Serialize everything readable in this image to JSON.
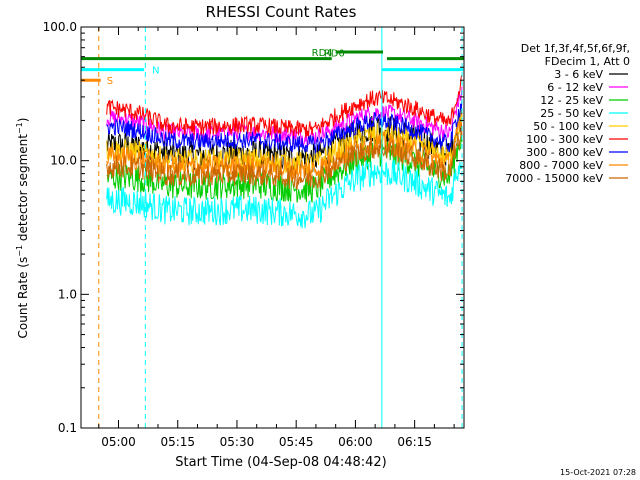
{
  "chart_data": {
    "type": "line",
    "title": "RHESSI Count Rates",
    "xlabel": "Start Time (04-Sep-08 04:48:42)",
    "ylabel": "Count Rate (s⁻¹ detector segment⁻¹)",
    "ylabel_parts": {
      "main": "Count Rate (s",
      "sup1": "−1",
      "mid": " detector segment",
      "sup2": "−1",
      "end": ")"
    },
    "yscale": "log",
    "ylim": [
      0.1,
      100
    ],
    "xlim_minutes": [
      -9.5,
      87.5
    ],
    "xtick_labels": [
      {
        "label": "05:00",
        "minute": 0
      },
      {
        "label": "05:15",
        "minute": 15
      },
      {
        "label": "05:30",
        "minute": 30
      },
      {
        "label": "05:45",
        "minute": 45
      },
      {
        "label": "06:00",
        "minute": 60
      },
      {
        "label": "06:15",
        "minute": 75
      }
    ],
    "ytick_labels": [
      {
        "label": "0.1",
        "value": 0.1
      },
      {
        "label": "1.0",
        "value": 1
      },
      {
        "label": "10.0",
        "value": 10
      },
      {
        "label": "100.0",
        "value": 100
      }
    ],
    "legend_header": [
      "Det 1f,3f,4f,5f,6f,9f,",
      "FDecim 1, Att 0"
    ],
    "series": [
      {
        "name": "3 - 6 keV",
        "color": "#000000",
        "start": 13,
        "mid": 11,
        "hump": 17,
        "end": 12,
        "noise": 0.05
      },
      {
        "name": "6 - 12 keV",
        "color": "#ff00ff",
        "start": 21,
        "mid": 16,
        "hump": 22,
        "end": 17,
        "noise": 0.03
      },
      {
        "name": "12 - 25 keV",
        "color": "#00cc00",
        "start": 7.5,
        "mid": 6.5,
        "hump": 11,
        "end": 8,
        "noise": 0.05
      },
      {
        "name": "25 - 50 keV",
        "color": "#00ffff",
        "start": 5,
        "mid": 4.2,
        "hump": 8,
        "end": 5.5,
        "noise": 0.05
      },
      {
        "name": "50 - 100 keV",
        "color": "#ffcc00",
        "start": 12,
        "mid": 10,
        "hump": 15,
        "end": 11,
        "noise": 0.04
      },
      {
        "name": "100 - 300 keV",
        "color": "#ff0000",
        "start": 25,
        "mid": 18,
        "hump": 28,
        "end": 20,
        "noise": 0.03
      },
      {
        "name": "300 - 800 keV",
        "color": "#0000ff",
        "start": 18,
        "mid": 14,
        "hump": 19,
        "end": 14,
        "noise": 0.03
      },
      {
        "name": "800 - 7000 keV",
        "color": "#ff8800",
        "start": 10.5,
        "mid": 9,
        "hump": 13,
        "end": 10,
        "noise": 0.04
      },
      {
        "name": "7000 - 15000 keV",
        "color": "#cc6600",
        "start": 9,
        "mid": 7.8,
        "hump": 12,
        "end": 8.5,
        "noise": 0.04
      }
    ],
    "flags": [
      {
        "name": "S",
        "label": "S",
        "color": "#ff8800",
        "start_minute": -9.5,
        "end_minute": -4.5,
        "level": 40
      },
      {
        "name": "N",
        "label": "N",
        "color": "#00ffff",
        "start_minute": -9.5,
        "end_minute": 6.5,
        "level": 48
      },
      {
        "name": "RD0",
        "label": "RD0",
        "color": "#008800",
        "start_minute": -9.5,
        "end_minute": 87.5,
        "level": 58
      },
      {
        "name": "RD4",
        "label": "RD4",
        "color": "#008800",
        "start_minute": 55,
        "end_minute": 67,
        "level": 65
      }
    ],
    "vertical_markers": [
      {
        "minute": -5.0,
        "color": "#ff8800",
        "style": "dashed"
      },
      {
        "minute": 6.8,
        "color": "#00ffff",
        "style": "dashed"
      },
      {
        "minute": 66.7,
        "color": "#00ffff",
        "style": "solid"
      },
      {
        "minute": 87.0,
        "color": "#00ffff",
        "style": "dashed"
      }
    ],
    "data_start_minute": -3,
    "data_end_minute": 87
  },
  "footer": {
    "date": "15-Oct-2021 07:28"
  }
}
